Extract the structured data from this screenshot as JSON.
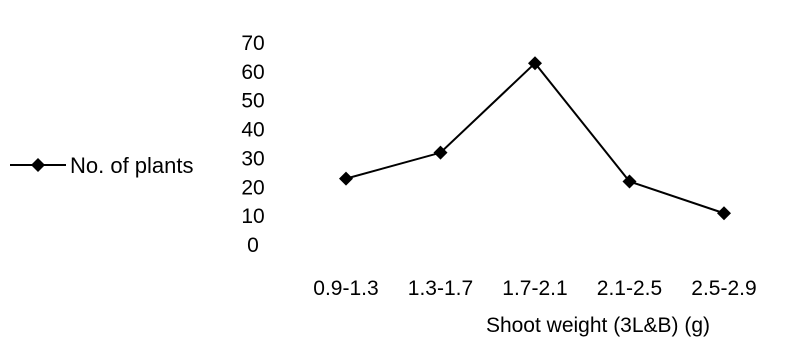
{
  "chart_data": {
    "type": "line",
    "categories": [
      "0.9-1.3",
      "1.3-1.7",
      "1.7-2.1",
      "2.1-2.5",
      "2.5-2.9"
    ],
    "series": [
      {
        "name": "No. of plants",
        "values": [
          23,
          32,
          63,
          22,
          11
        ]
      }
    ],
    "title": "",
    "xlabel": "Shoot weight (3L&B) (g)",
    "ylabel": "",
    "ylim": [
      0,
      70
    ],
    "yticks": [
      "0",
      "10",
      "20",
      "30",
      "40",
      "50",
      "60",
      "70"
    ],
    "grid": false,
    "legend_position": "left",
    "marker": "diamond",
    "line_color": "#000000"
  }
}
